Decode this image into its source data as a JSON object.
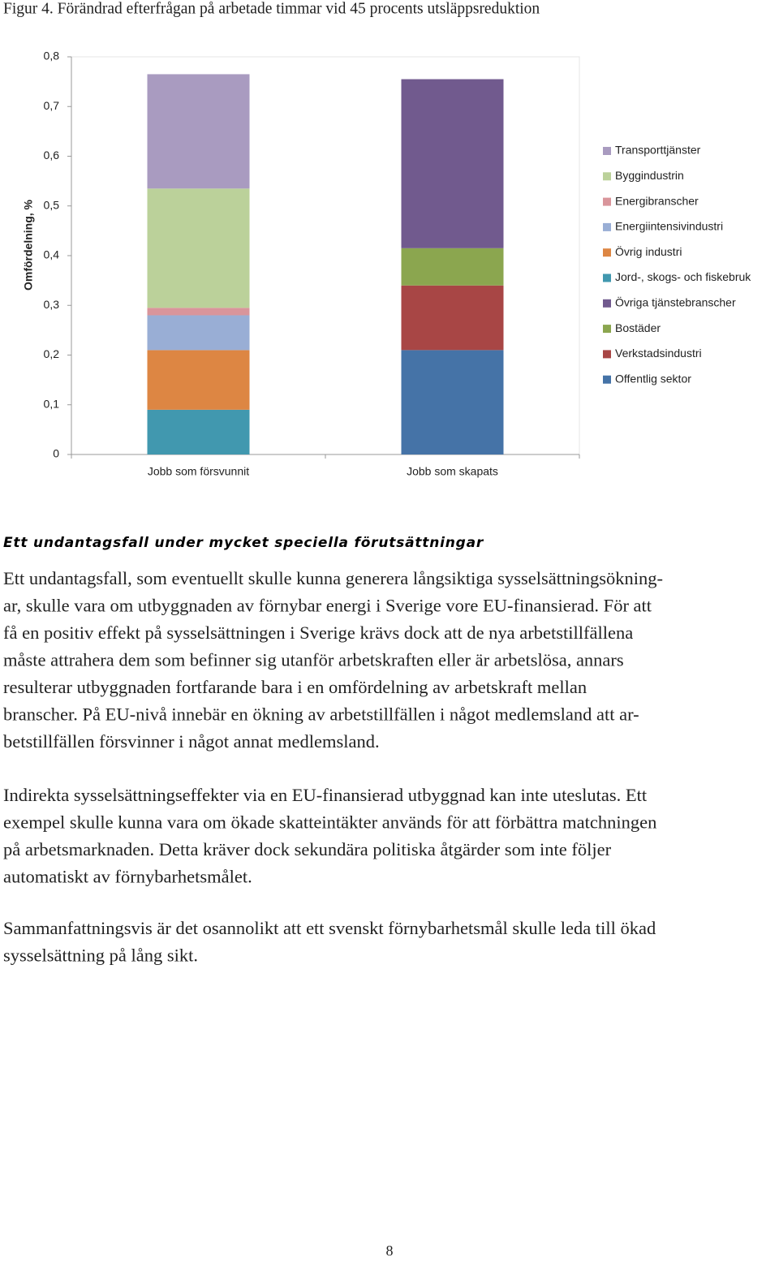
{
  "chart_data": {
    "type": "stacked-bar",
    "title": "Figur 4. Förändrad efterfrågan på arbetade timmar vid 45 procents utsläppsreduktion",
    "ylabel": "Omfördelning, %",
    "categories": [
      "Jobb som försvunnit",
      "Jobb som skapats"
    ],
    "ylim": [
      0,
      0.8
    ],
    "yticks": [
      0,
      {
        "value": 0.1,
        "label": "0,1"
      },
      {
        "value": 0.2,
        "label": "0,2"
      },
      {
        "value": 0.3,
        "label": "0,3"
      },
      {
        "value": 0.4,
        "label": "0,4"
      },
      {
        "value": 0.5,
        "label": "0,5"
      },
      {
        "value": 0.6,
        "label": "0,6"
      },
      {
        "value": 0.7,
        "label": "0,7"
      },
      {
        "value": 0.8,
        "label": "0,8"
      }
    ],
    "grid": false,
    "legend": "right",
    "series": [
      {
        "name": "Transporttjänster",
        "color": "#a99bc0",
        "values": [
          0.23,
          null
        ]
      },
      {
        "name": "Byggindustrin",
        "color": "#bbd19a",
        "values": [
          0.24,
          null
        ]
      },
      {
        "name": "Energibranscher",
        "color": "#d9959b",
        "values": [
          0.015,
          null
        ]
      },
      {
        "name": "Energiintensivindustri",
        "color": "#99aed5",
        "values": [
          0.07,
          null
        ]
      },
      {
        "name": "Övrig industri",
        "color": "#dd8643",
        "values": [
          0.12,
          null
        ]
      },
      {
        "name": "Jord-, skogs- och fiskebruk",
        "color": "#4198af",
        "values": [
          0.09,
          null
        ]
      },
      {
        "name": "Övriga tjänstebranscher",
        "color": "#715a8e",
        "values": [
          null,
          0.34
        ]
      },
      {
        "name": "Bostäder",
        "color": "#8ba64f",
        "values": [
          null,
          0.075
        ]
      },
      {
        "name": "Verkstadsindustri",
        "color": "#a84645",
        "values": [
          null,
          0.13
        ]
      },
      {
        "name": "Offentlig sektor",
        "color": "#4573a7",
        "values": [
          null,
          0.21
        ]
      }
    ]
  },
  "section": {
    "heading": "Ett undantagsfall under mycket speciella förutsättningar",
    "paragraphs": [
      [
        "Ett undantagsfall, som eventuellt skulle kunna generera långsiktiga sysselsättningsökning-",
        "ar, skulle vara om utbyggnaden av förnybar energi i Sverige vore EU-finansierad. För att",
        "få en positiv effekt på sysselsättningen i Sverige krävs dock att de nya arbetstillfällena",
        "måste attrahera dem som befinner sig utanför arbetskraften eller är arbetslösa, annars",
        "resulterar utbyggnaden fortfarande bara i en omfördelning av arbetskraft mellan",
        "branscher. På EU-nivå innebär en ökning av arbetstillfällen i något medlemsland att ar-",
        "betstillfällen försvinner i något annat medlemsland."
      ],
      [
        "Indirekta sysselsättningseffekter via en EU-finansierad utbyggnad kan inte uteslutas. Ett",
        "exempel skulle kunna vara om ökade skatteintäkter används för att förbättra matchningen",
        "på arbetsmarknaden. Detta kräver dock sekundära politiska åtgärder som inte följer",
        "automatiskt av förnybarhetsmålet."
      ],
      [
        "Sammanfattningsvis är det osannolikt att ett svenskt förnybarhetsmål skulle leda till ökad",
        "sysselsättning på lång sikt."
      ]
    ]
  },
  "page_number": "8"
}
